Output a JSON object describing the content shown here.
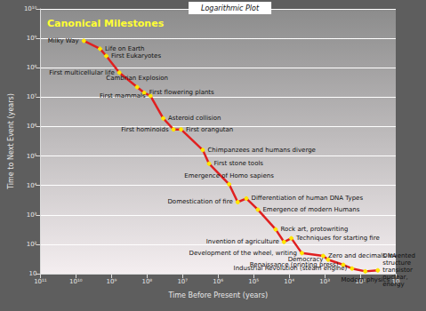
{
  "chart_data": {
    "type": "line",
    "title": "Canonical Milestones",
    "subtitle": "Logarithmic Plot",
    "x_label": "Time Before Present (years)",
    "y_label": "Time to Next Event (years)",
    "log": true,
    "grid": true,
    "color": "#e02020",
    "marker": "circle",
    "annotations": [
      "Milky Way",
      "Life on Earth",
      "First Eukaryotes",
      "First multicellular life",
      "Cambrian Explosion",
      "First flowering plants",
      "First mammals",
      "Asteroid collision",
      "First hominoids",
      "First orangutan",
      "Chimpanzees and humans diverge",
      "First stone tools",
      "Emergence of Homo sapiens",
      "Domestication of fire",
      "Differentiation of human DNA Types",
      "Emergence of modern Humans",
      "Rock art, protowriting",
      "Invention of agriculture",
      "Techniques for starting fire",
      "Development of the wheel, writing",
      "Zero and decimals invented",
      "Democracy",
      "Renaissance (printing press)",
      "Industrial Revolution (steam engine)",
      "Modern physics",
      "DNA\nstructure\ntransistor\nnuclear,\nenergy"
    ],
    "x": [
      6000000000,
      2100000000,
      1400000000,
      600000000,
      190000000,
      120000000,
      80000000,
      35000000,
      18000000,
      11000000,
      2700000,
      1800000,
      490000,
      280000,
      160000,
      76000,
      24000,
      14000,
      8700,
      4400,
      1100,
      800,
      300,
      170,
      72,
      32
    ],
    "values": [
      820000000,
      440000000,
      250000000,
      68000000,
      22000000,
      14000000,
      11000000,
      1900000,
      800000,
      800000,
      160000,
      55000,
      11000,
      2700,
      3600,
      1500,
      320,
      120,
      160,
      50,
      40,
      30,
      20,
      15,
      12,
      13
    ],
    "xlim": [
      100000000000,
      10
    ],
    "ylim": [
      10,
      10000000000
    ],
    "xticks": [
      {
        "value": 100000000000,
        "label": "10¹¹"
      },
      {
        "value": 10000000000,
        "label": "10¹⁰"
      },
      {
        "value": 1000000000,
        "label": "10⁹"
      },
      {
        "value": 100000000,
        "label": "10⁸"
      },
      {
        "value": 10000000,
        "label": "10⁷"
      },
      {
        "value": 1000000,
        "label": "10⁶"
      },
      {
        "value": 100000,
        "label": "10⁵"
      },
      {
        "value": 10000,
        "label": "10⁴"
      },
      {
        "value": 1000,
        "label": "10³"
      },
      {
        "value": 100,
        "label": "10²"
      },
      10
    ],
    "yticks": [
      10,
      {
        "value": 100,
        "label": "10²"
      },
      {
        "value": 1000,
        "label": "10³"
      },
      {
        "value": 10000,
        "label": "10⁴"
      },
      {
        "value": 100000,
        "label": "10⁵"
      },
      {
        "value": 1000000,
        "label": "10⁶"
      },
      {
        "value": 10000000,
        "label": "10⁷"
      },
      {
        "value": 100000000,
        "label": "10⁸"
      },
      {
        "value": 1000000000,
        "label": "10⁹"
      },
      {
        "value": 10000000000,
        "label": "10¹⁰"
      }
    ]
  }
}
